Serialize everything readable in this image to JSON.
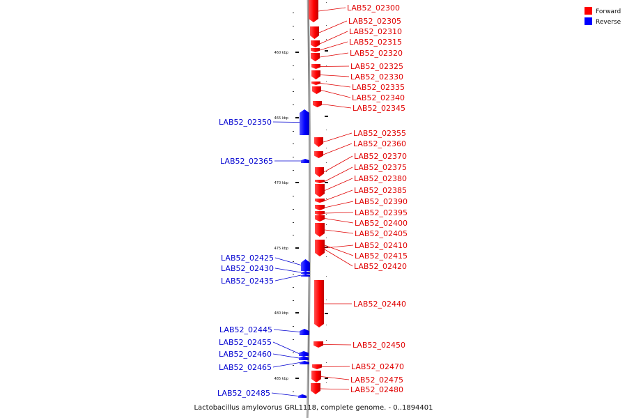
{
  "legend": {
    "forward": {
      "label": "Forward",
      "color": "#ff0000"
    },
    "reverse": {
      "label": "Reverse",
      "color": "#0000ff"
    }
  },
  "caption": "Lactobacillus amylovorus GRL1118, complete genome. - 0..1894401",
  "axis": {
    "ticks": [
      "460 kbp",
      "465 kbp",
      "470 kbp",
      "475 kbp",
      "480 kbp",
      "485 kbp"
    ]
  },
  "forward_genes": [
    "LAB52_02300",
    "LAB52_02305",
    "LAB52_02310",
    "LAB52_02315",
    "LAB52_02320",
    "LAB52_02325",
    "LAB52_02330",
    "LAB52_02335",
    "LAB52_02340",
    "LAB52_02345",
    "LAB52_02355",
    "LAB52_02360",
    "LAB52_02370",
    "LAB52_02375",
    "LAB52_02380",
    "LAB52_02385",
    "LAB52_02390",
    "LAB52_02395",
    "LAB52_02400",
    "LAB52_02405",
    "LAB52_02410",
    "LAB52_02415",
    "LAB52_02420",
    "LAB52_02440",
    "LAB52_02450",
    "LAB52_02470",
    "LAB52_02475",
    "LAB52_02480"
  ],
  "reverse_genes": [
    "LAB52_02350",
    "LAB52_02365",
    "LAB52_02425",
    "LAB52_02430",
    "LAB52_02435",
    "LAB52_02445",
    "LAB52_02455",
    "LAB52_02460",
    "LAB52_02465",
    "LAB52_02485"
  ]
}
